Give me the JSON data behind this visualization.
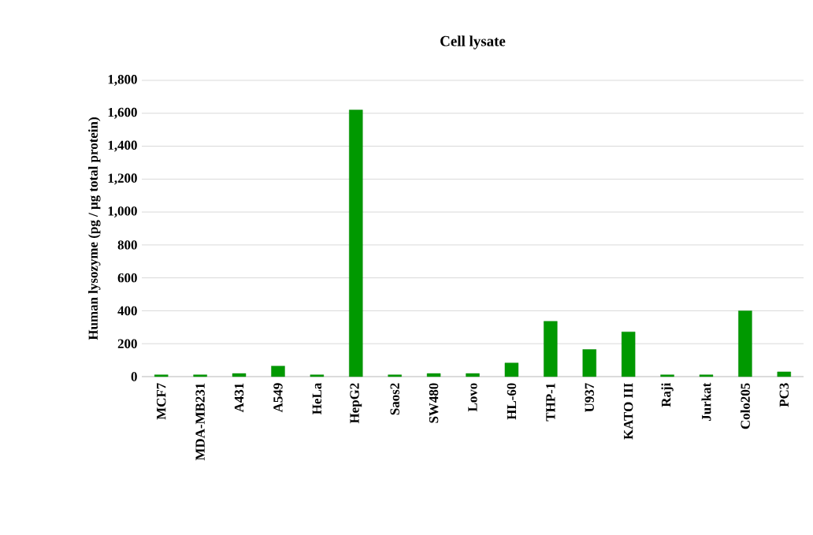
{
  "chart_data": {
    "type": "bar",
    "title": "Cell  lysate",
    "ylabel": "Human  lysozyme  (pg / µg total protein)",
    "categories": [
      "MCF7",
      "MDA-MB231",
      "A431",
      "A549",
      "HeLa",
      "HepG2",
      "Saos2",
      "SW480",
      "Lovo",
      "HL-60",
      "THP-1",
      "U937",
      "KATO III",
      "Raji",
      "Jurkat",
      "Colo205",
      "PC3"
    ],
    "values": [
      11,
      11,
      19,
      64,
      11,
      1620,
      11,
      19,
      19,
      83,
      336,
      165,
      272,
      11,
      11,
      400,
      29
    ],
    "color": "#009900",
    "ylim": [
      0,
      1800
    ],
    "yticks": [
      0,
      200,
      400,
      600,
      800,
      {
        "value": 1000,
        "label": "1,000"
      },
      {
        "value": 1200,
        "label": "1,200"
      },
      {
        "value": 1400,
        "label": "1,400"
      },
      {
        "value": 1600,
        "label": "1,600"
      },
      {
        "value": 1800,
        "label": "1,800"
      }
    ],
    "grid": "y"
  }
}
